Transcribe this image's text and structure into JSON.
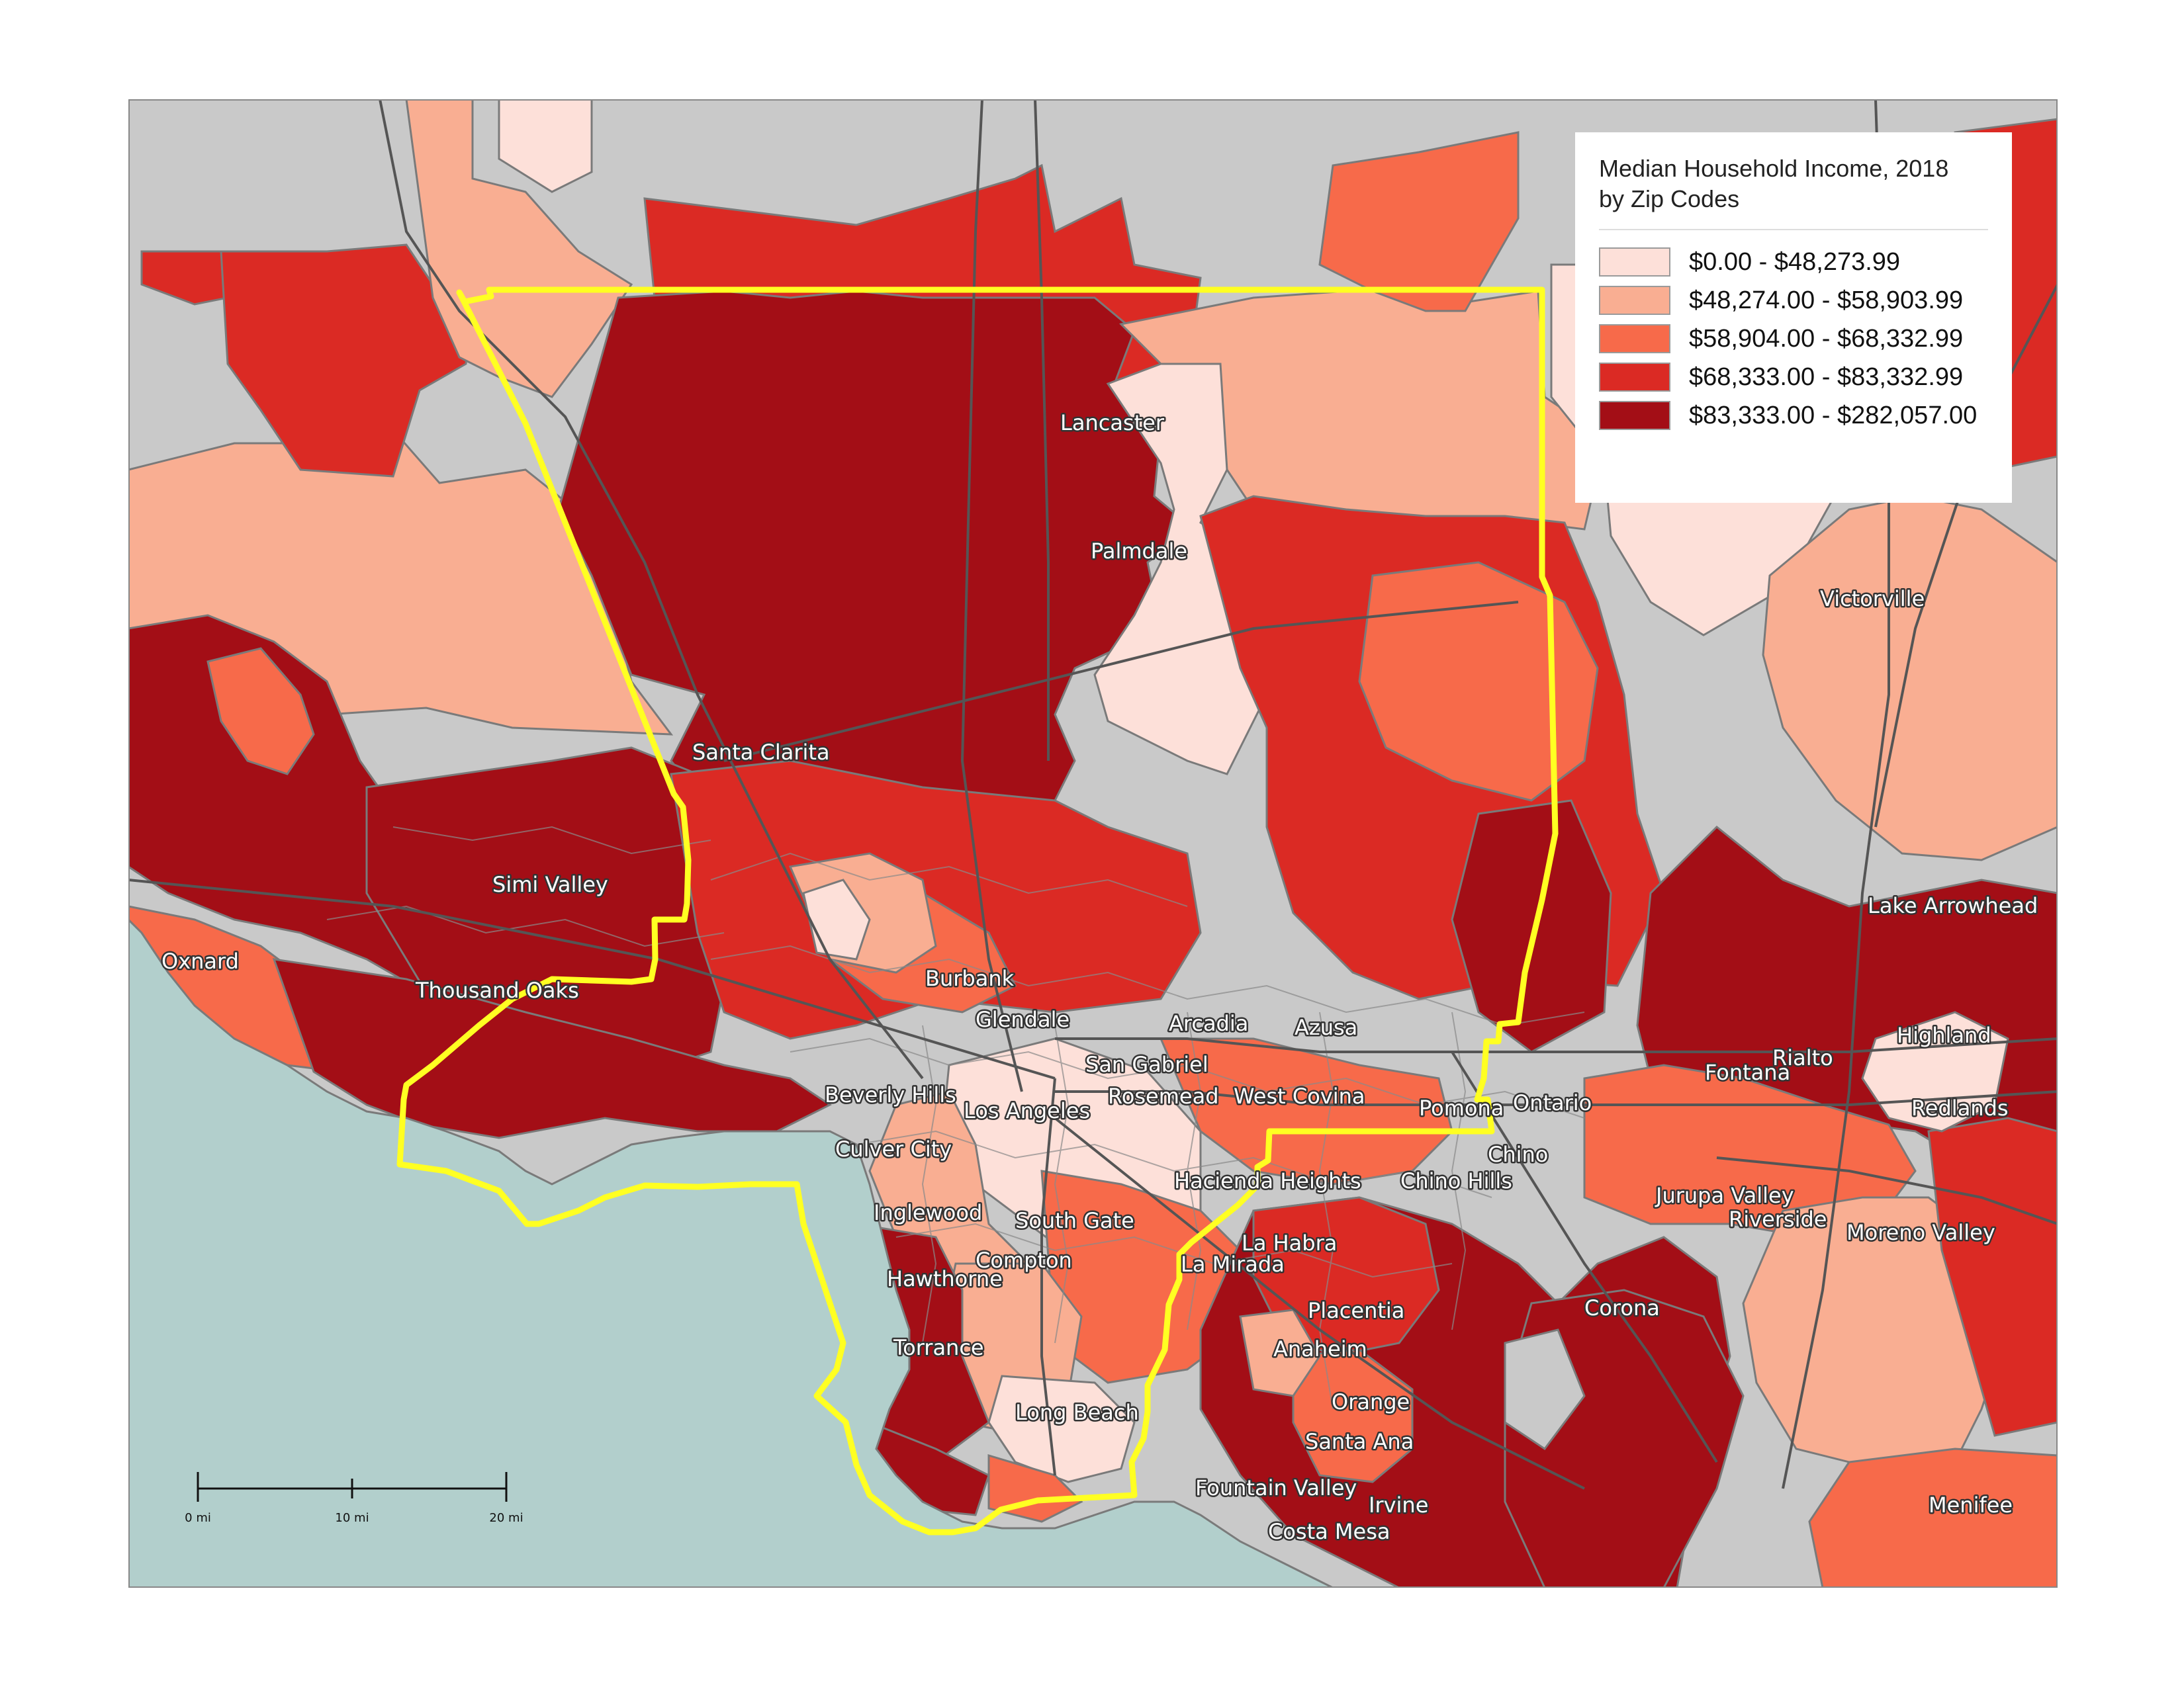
{
  "legend": {
    "title": "Median Household Income, 2018\nby Zip Codes",
    "items": [
      {
        "label": "$0.00 - $48,273.99",
        "color": "#fde0d9"
      },
      {
        "label": "$48,274.00 - $58,903.99",
        "color": "#f9ae92"
      },
      {
        "label": "$58,904.00 - $68,332.99",
        "color": "#f76a4a"
      },
      {
        "label": "$68,333.00 - $83,332.99",
        "color": "#db2a24"
      },
      {
        "label": "$83,333.00 - $282,057.00",
        "color": "#a30e16"
      }
    ]
  },
  "scale_bar": {
    "labels": [
      "0 mi",
      "10 mi",
      "20 mi"
    ]
  },
  "colors": {
    "ocean": "#b2cfcc",
    "no_data": "#c9c9c9",
    "boundary": "#ffff22",
    "roads": "#555555",
    "zip_borders": "#7a7a7a"
  },
  "places": [
    "Lancaster",
    "Palmdale",
    "Victorville",
    "Santa Clarita",
    "Simi Valley",
    "Lake Arrowhead",
    "Oxnard",
    "Thousand Oaks",
    "Burbank",
    "Glendale",
    "Arcadia",
    "Azusa",
    "Highland",
    "Rialto",
    "San Gabriel",
    "Fontana",
    "Beverly Hills",
    "Rosemead",
    "West Covina",
    "Pomona",
    "Ontario",
    "Los Angeles",
    "Redlands",
    "Culver City",
    "Chino",
    "Hacienda Heights",
    "Chino Hills",
    "Jurupa Valley",
    "Inglewood",
    "South Gate",
    "Riverside",
    "Moreno Valley",
    "La Habra",
    "Compton",
    "La Mirada",
    "Hawthorne",
    "Placentia",
    "Corona",
    "Torrance",
    "Anaheim",
    "Orange",
    "Long Beach",
    "Santa Ana",
    "Fountain Valley",
    "Irvine",
    "Menifee",
    "Costa Mesa"
  ]
}
